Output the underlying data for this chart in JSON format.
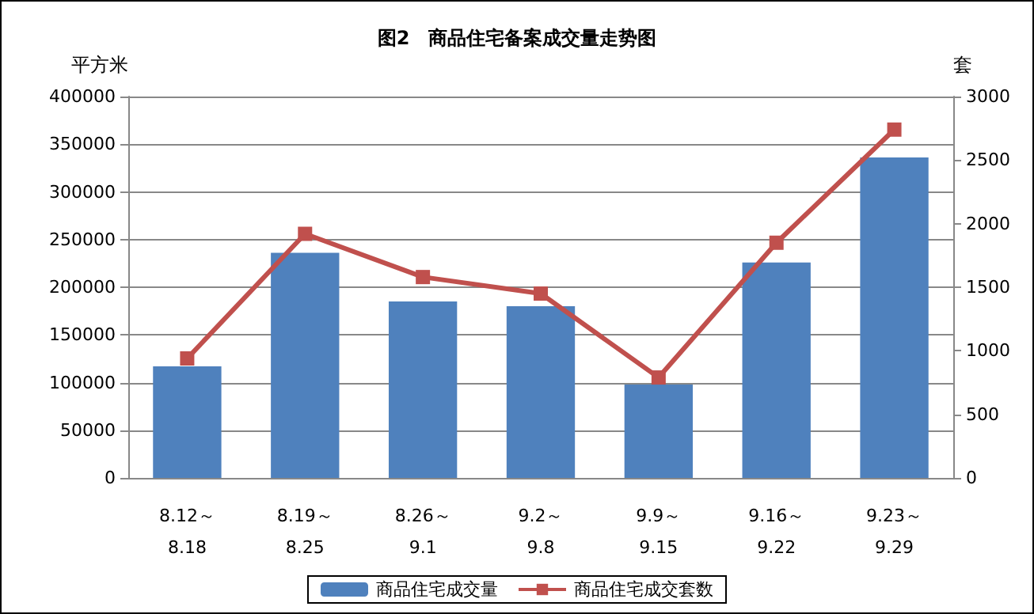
{
  "chart_data": {
    "type": "bar",
    "title": "图2　商品住宅备案成交量走势图",
    "ylabel": "平方米",
    "y2label": "套",
    "categories": [
      "8.12～\n8.18",
      "8.19～\n8.25",
      "8.26～\n9.1",
      "9.2～\n9.8",
      "9.9～\n9.15",
      "9.16～\n9.22",
      "9.23～\n9.29"
    ],
    "series": [
      {
        "name": "商品住宅成交量",
        "color": "#4f81bd",
        "values": [
          117000,
          236000,
          185000,
          180000,
          98000,
          226000,
          336000
        ]
      },
      {
        "name": "商品住宅成交套数",
        "type": "line",
        "axis": "y2",
        "color": "#c0504d",
        "marker": "square",
        "values": [
          940,
          1920,
          1580,
          1450,
          790,
          1850,
          2740
        ]
      }
    ],
    "ylim": [
      0,
      400000
    ],
    "yticks": [
      0,
      50000,
      100000,
      150000,
      200000,
      250000,
      300000,
      350000,
      400000
    ],
    "y2lim": [
      0,
      3000
    ],
    "y2ticks": [
      0,
      500,
      1000,
      1500,
      2000,
      2500,
      3000
    ],
    "grid": "y",
    "legend": "bottom"
  }
}
